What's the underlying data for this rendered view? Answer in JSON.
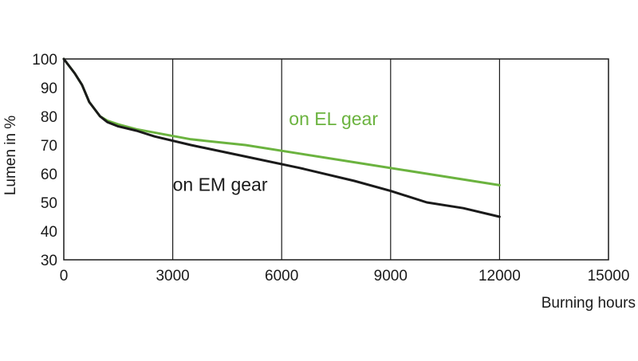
{
  "chart_data": {
    "type": "line",
    "xlabel": "Burning hours",
    "ylabel": "Lumen in %",
    "xlim": [
      0,
      15000
    ],
    "ylim": [
      30,
      100
    ],
    "x_ticks": [
      0,
      3000,
      6000,
      9000,
      12000,
      15000
    ],
    "x_tick_labels": [
      "0",
      "3000",
      "6000",
      "9000",
      "12000",
      "15000"
    ],
    "y_ticks": [
      30,
      40,
      50,
      60,
      70,
      80,
      90,
      100
    ],
    "y_tick_labels": [
      "30",
      "40",
      "50",
      "60",
      "70",
      "80",
      "90",
      "100"
    ],
    "grid": "vertical",
    "series": [
      {
        "name": "on EL gear",
        "color": "#6bb33f",
        "x": [
          0,
          300,
          500,
          700,
          1000,
          1200,
          1500,
          2000,
          3500,
          5000,
          6500,
          8000,
          10000,
          12000
        ],
        "y": [
          100,
          95,
          91,
          85,
          80,
          78.5,
          77.2,
          75.5,
          72,
          70,
          67,
          64,
          60,
          56
        ]
      },
      {
        "name": "on EM gear",
        "color": "#1a1a1a",
        "x": [
          0,
          300,
          500,
          700,
          1000,
          1200,
          1500,
          2000,
          2500,
          3500,
          5000,
          6500,
          8000,
          9000,
          10000,
          11000,
          12000
        ],
        "y": [
          100,
          95,
          91,
          85,
          80,
          78,
          76.5,
          75,
          73,
          70,
          66,
          62,
          57.5,
          54,
          50,
          48,
          45
        ]
      }
    ],
    "annotations": [
      {
        "text": "on EL gear",
        "color": "#6bb33f",
        "x": 6200,
        "y": 77
      },
      {
        "text": "on EM gear",
        "color": "#1a1a1a",
        "x": 3000,
        "y": 54
      }
    ]
  }
}
